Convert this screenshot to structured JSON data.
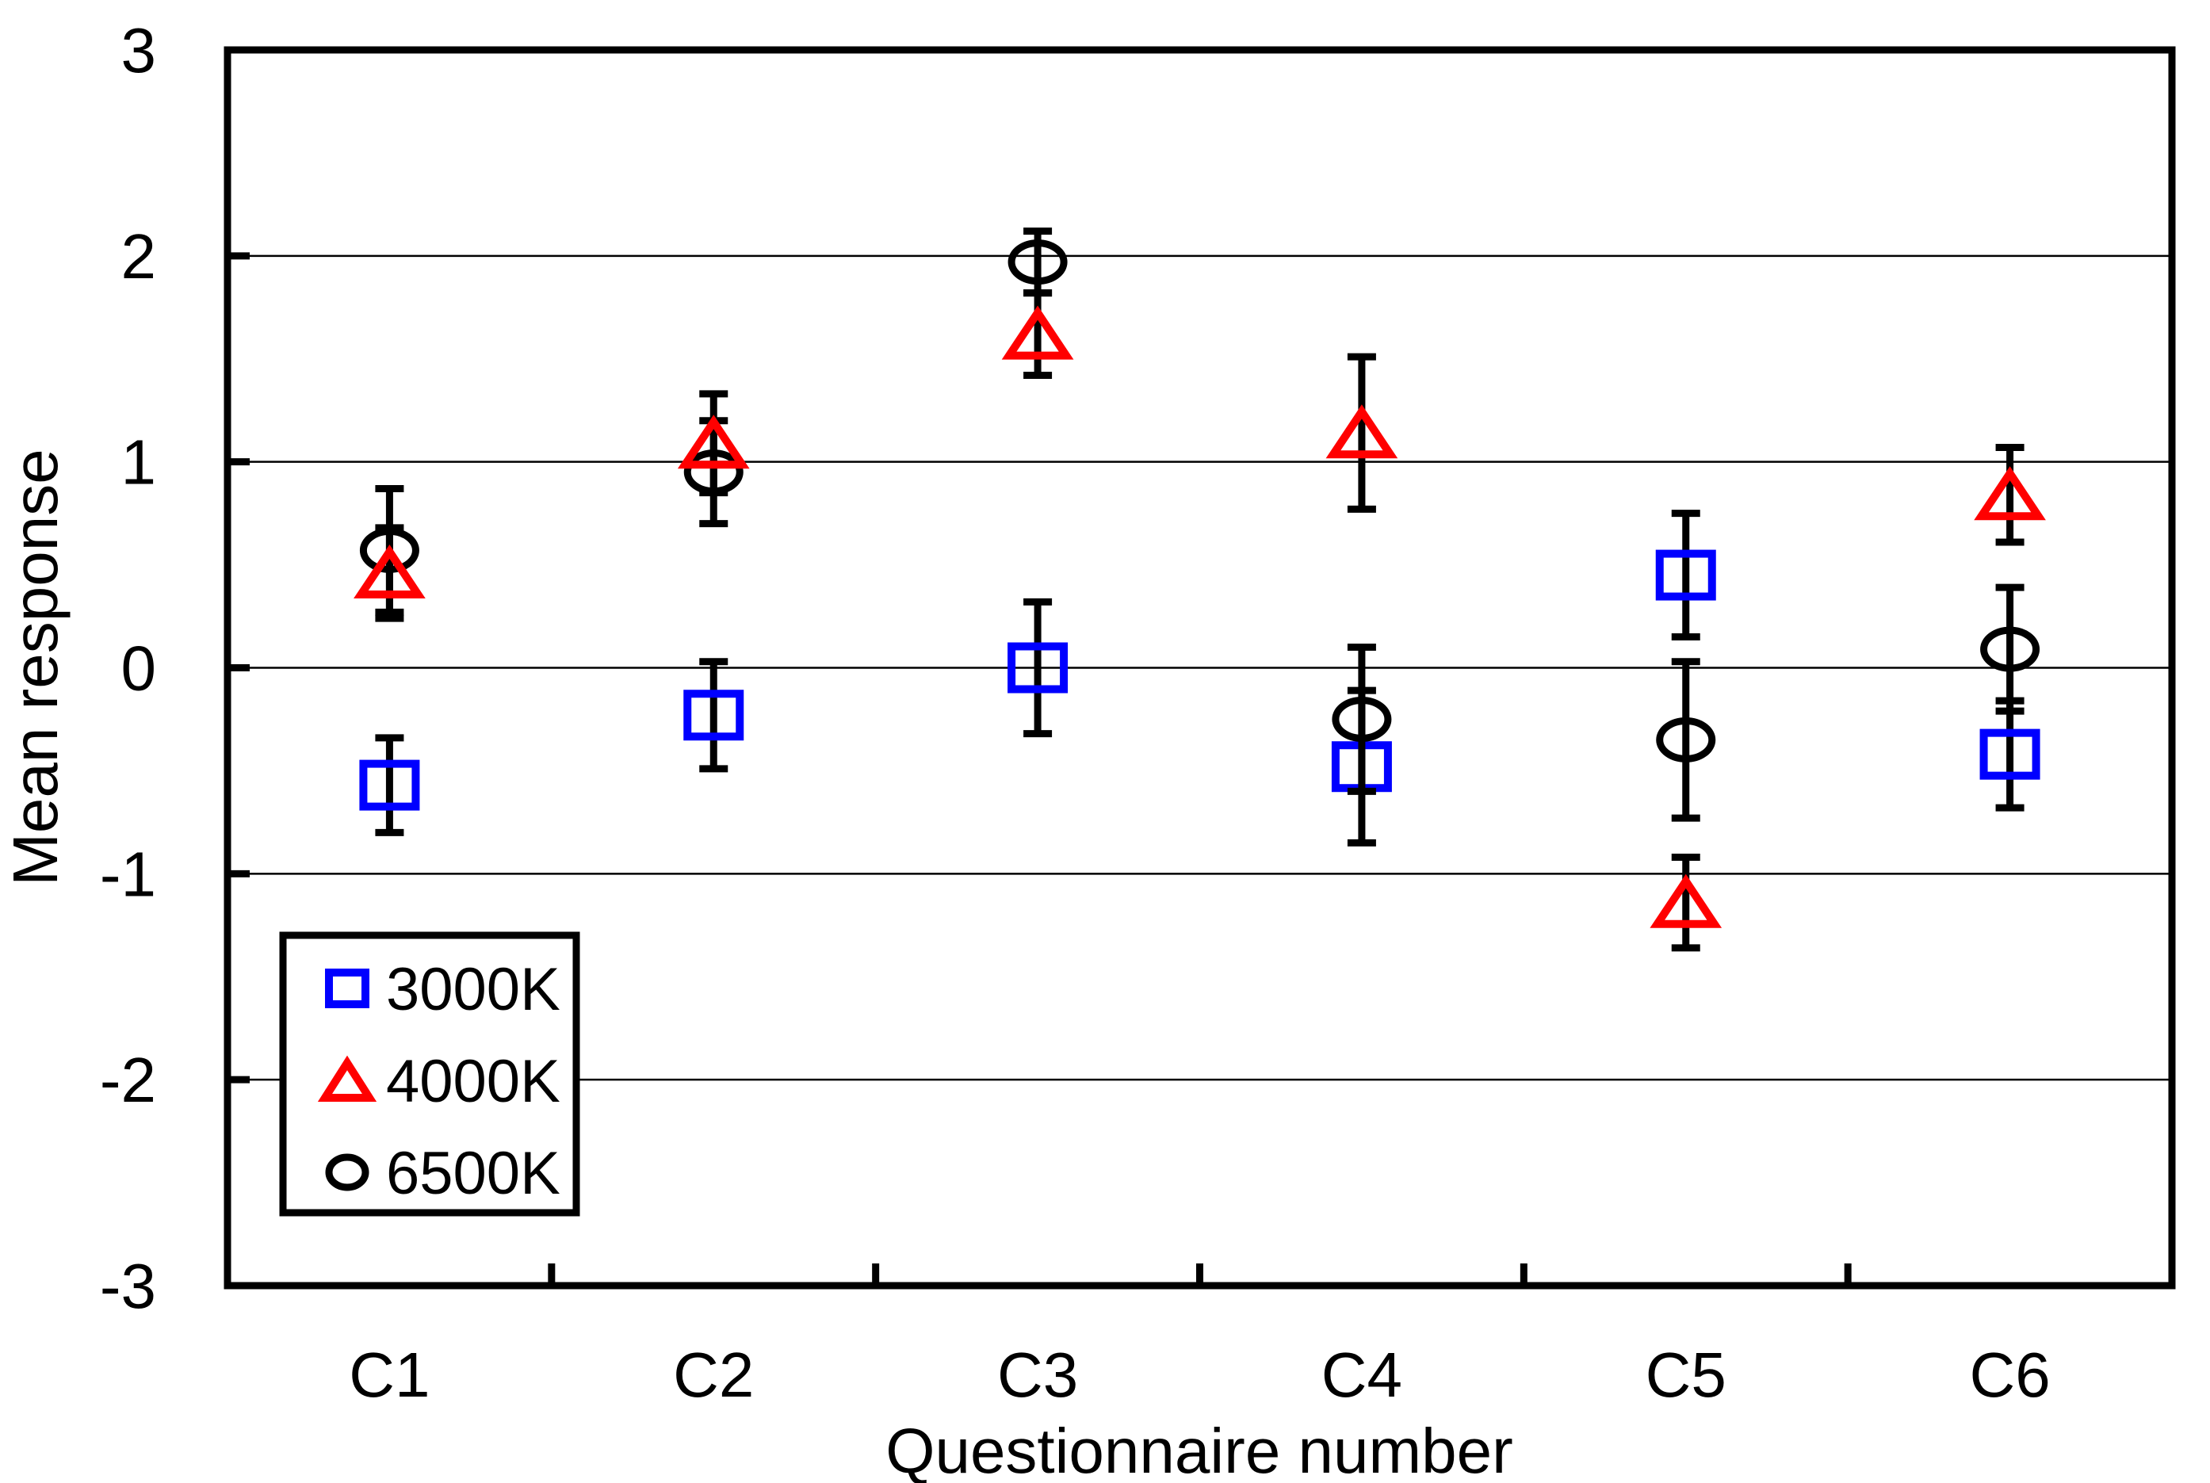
{
  "figure": {
    "background": "#FFFFFF",
    "frame_color": "#000000",
    "gridline_color": "#000000"
  },
  "chart_data": {
    "type": "scatter",
    "title": "",
    "xlabel": "Questionnaire number",
    "ylabel": "Mean response",
    "categories": [
      "C1",
      "C2",
      "C3",
      "C4",
      "C5",
      "C6"
    ],
    "ylim": [
      -3,
      3
    ],
    "yticks": [
      3,
      2,
      1,
      0,
      -1,
      -2,
      -3
    ],
    "grid": {
      "horizontal": true,
      "gridline_values": [
        2,
        1,
        0,
        -1,
        -2
      ],
      "color": "#000000"
    },
    "error_bars": {
      "color": "#000000",
      "style": "symmetric, capped"
    },
    "series": [
      {
        "name": "3000K",
        "marker": "square",
        "color": "#0000FF",
        "values": [
          -0.57,
          -0.23,
          0.0,
          -0.48,
          0.45,
          -0.42
        ],
        "errors": [
          0.23,
          0.26,
          0.32,
          0.37,
          0.3,
          0.26
        ]
      },
      {
        "name": "4000K",
        "marker": "triangle",
        "color": "#FF0000",
        "values": [
          0.46,
          1.09,
          1.62,
          1.14,
          -1.14,
          0.84
        ],
        "errors": [
          0.22,
          0.24,
          0.2,
          0.37,
          0.22,
          0.23
        ]
      },
      {
        "name": "6500K",
        "marker": "circle",
        "color": "#000000",
        "values": [
          0.57,
          0.95,
          1.97,
          -0.25,
          -0.35,
          0.09
        ],
        "errors": [
          0.3,
          0.25,
          0.15,
          0.35,
          0.38,
          0.3
        ]
      }
    ],
    "draw_order": [
      "3000K",
      "6500K",
      "4000K"
    ],
    "legend": {
      "position": "lower-left-inside",
      "entries": [
        "3000K",
        "4000K",
        "6500K"
      ],
      "border_color": "#000000",
      "fill": "#FFFFFF"
    }
  }
}
